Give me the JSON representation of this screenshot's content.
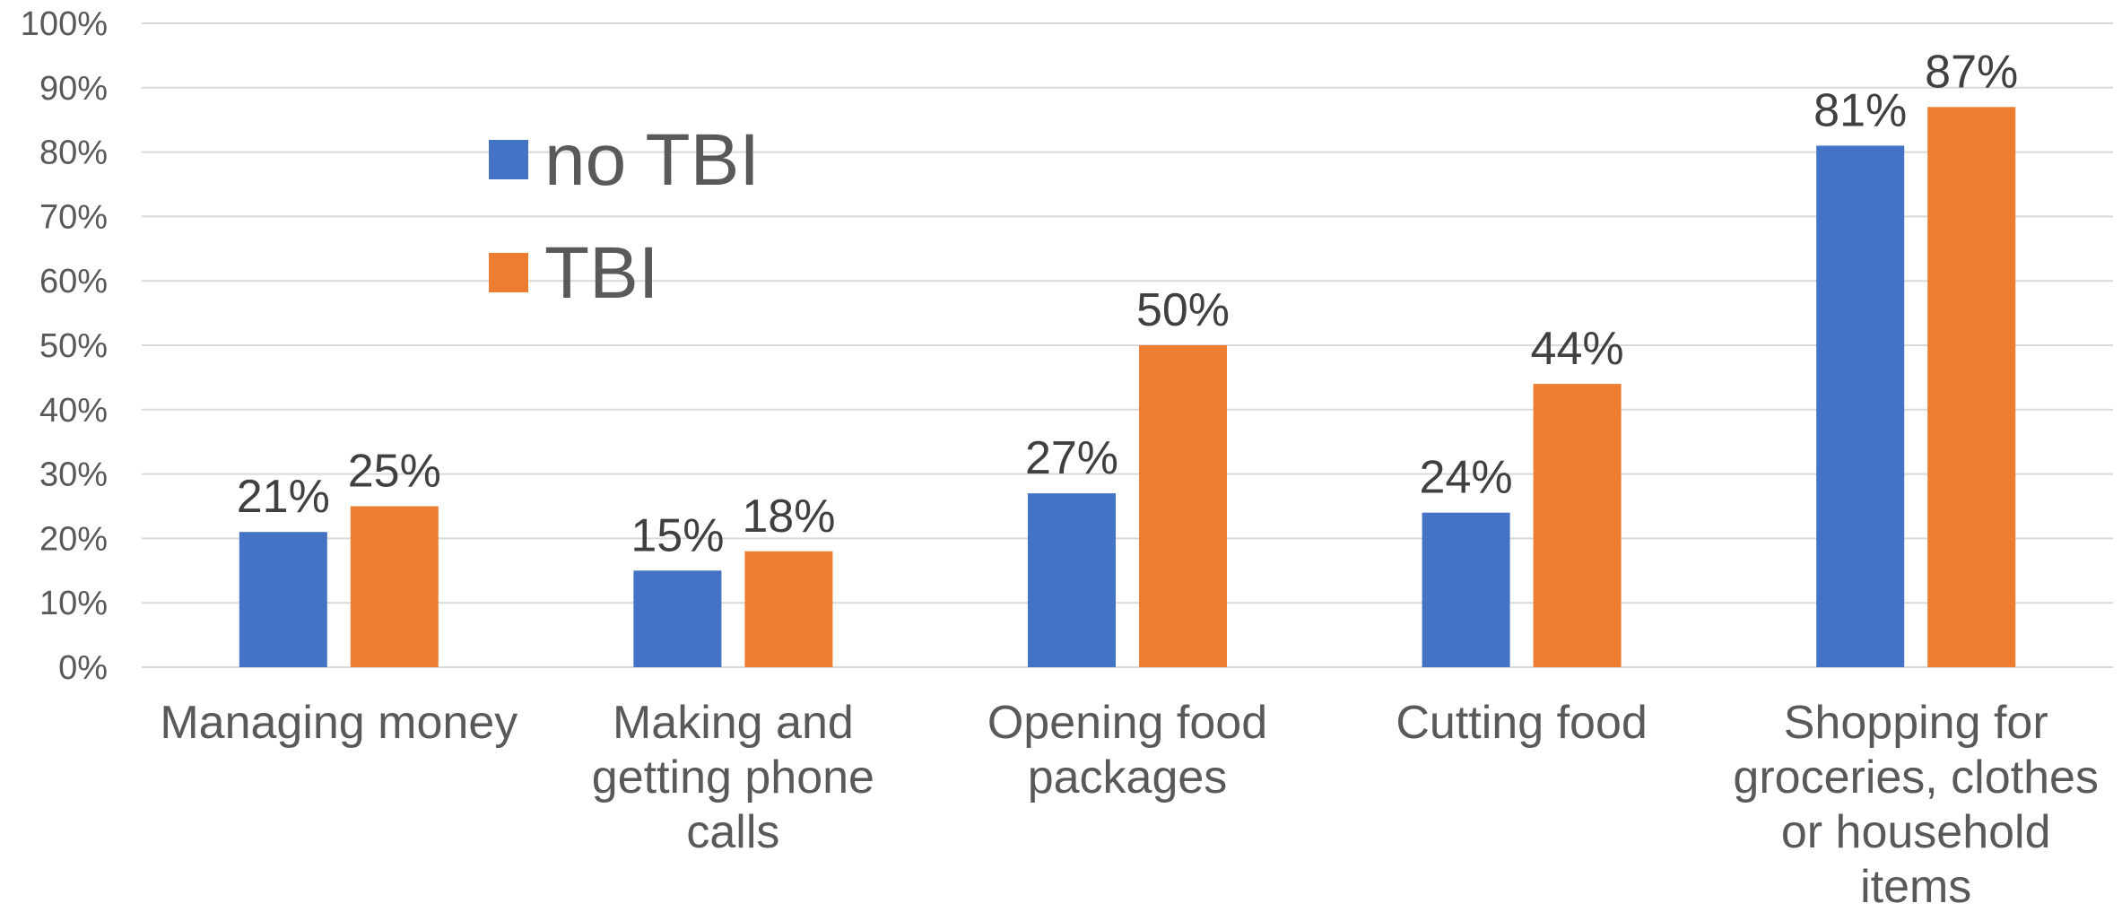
{
  "chart_data": {
    "type": "bar",
    "title": "",
    "xlabel": "",
    "ylabel": "",
    "categories": [
      "Managing money",
      "Making and getting phone calls",
      "Opening food packages",
      "Cutting food",
      "Shopping for groceries, clothes or household items"
    ],
    "series": [
      {
        "name": "no TBI",
        "color": "#4472C4",
        "values": [
          21,
          15,
          27,
          24,
          81
        ]
      },
      {
        "name": "TBI",
        "color": "#ED7D31",
        "values": [
          25,
          18,
          50,
          44,
          87
        ]
      }
    ],
    "ylim": [
      0,
      100
    ],
    "yticks": [
      "0%",
      "10%",
      "20%",
      "30%",
      "40%",
      "50%",
      "60%",
      "70%",
      "80%",
      "90%",
      "100%"
    ],
    "value_suffix": "%",
    "grid": true,
    "legend_position": "inside-left"
  }
}
